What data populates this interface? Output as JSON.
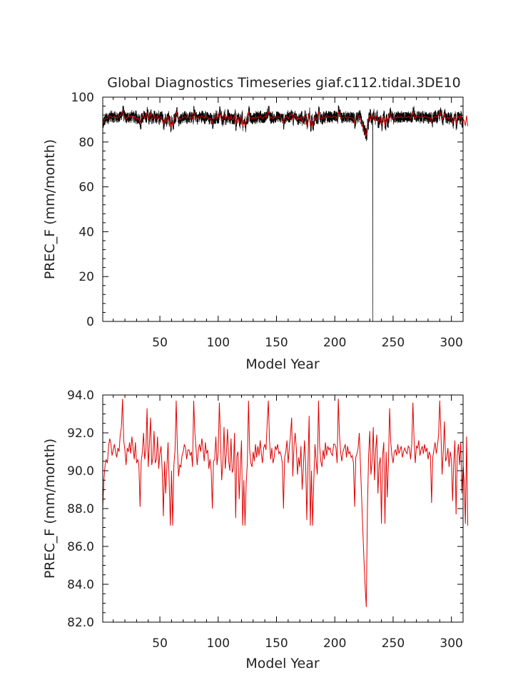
{
  "title": "Global Diagnostics Timeseries giaf.c112.tidal.3DE10",
  "chart_data": [
    {
      "type": "line",
      "title": "Global Diagnostics Timeseries giaf.c112.tidal.3DE10",
      "xlabel": "Model Year",
      "ylabel": "PREC_F (mm/month)",
      "xlim": [
        1,
        310
      ],
      "ylim": [
        0,
        100
      ],
      "xticks": [
        50,
        100,
        150,
        200,
        250,
        300
      ],
      "yticks": [
        0,
        20,
        40,
        60,
        80,
        100
      ],
      "ytick_labels": [
        "0",
        "20",
        "40",
        "60",
        "80",
        "100"
      ],
      "grid": false,
      "series": [
        {
          "color": "#000000",
          "description": "monthly values",
          "mean_level": 91,
          "noise_amplitude": 2.6,
          "x_range": [
            1,
            310
          ],
          "dropout": {
            "year": 232,
            "value": 0
          }
        },
        {
          "color": "#e00000",
          "description": "annual mean",
          "same_as": "bottom panel annual series"
        }
      ]
    },
    {
      "type": "line",
      "xlabel": "Model Year",
      "ylabel": "PREC_F (mm/month)",
      "xlim": [
        1,
        310
      ],
      "ylim": [
        82,
        94
      ],
      "xticks": [
        50,
        100,
        150,
        200,
        250,
        300
      ],
      "yticks": [
        82,
        84,
        86,
        88,
        90,
        92,
        94
      ],
      "ytick_labels": [
        "82.0",
        "84.0",
        "86.0",
        "88.0",
        "90.0",
        "92.0",
        "94.0"
      ],
      "grid": false,
      "series": [
        {
          "color": "#e00000",
          "description": "annual mean",
          "x_start": 1,
          "values": [
            88.0,
            89.5,
            90.3,
            90.6,
            90.4,
            91.3,
            91.7,
            91.4,
            90.8,
            91.1,
            91.4,
            91.0,
            90.7,
            91.2,
            91.0,
            91.9,
            92.3,
            93.8,
            91.6,
            91.1,
            90.3,
            91.2,
            91.0,
            91.5,
            90.9,
            91.8,
            91.2,
            90.6,
            91.5,
            90.4,
            90.6,
            90.3,
            88.1,
            90.5,
            91.0,
            92.0,
            90.6,
            91.1,
            93.3,
            90.2,
            91.4,
            92.8,
            90.3,
            90.7,
            92.1,
            90.4,
            90.6,
            91.8,
            90.1,
            90.9,
            91.3,
            90.0,
            87.6,
            90.5,
            88.8,
            90.2,
            91.5,
            89.3,
            87.1,
            90.0,
            87.1,
            90.3,
            91.1,
            93.7,
            91.2,
            89.7,
            90.3,
            90.2,
            90.8,
            91.0,
            91.4,
            91.2,
            90.6,
            91.1,
            91.1,
            90.8,
            91.0,
            90.2,
            93.7,
            92.0,
            91.2,
            90.3,
            91.1,
            91.4,
            91.0,
            91.7,
            91.2,
            90.5,
            91.5,
            90.9,
            91.1,
            90.1,
            90.6,
            90.0,
            88.0,
            90.5,
            90.6,
            91.8,
            90.3,
            91.0,
            93.6,
            91.7,
            89.5,
            90.4,
            92.3,
            90.1,
            90.9,
            92.2,
            90.5,
            90.0,
            91.7,
            89.9,
            90.1,
            92.0,
            87.5,
            90.8,
            91.0,
            88.5,
            90.2,
            91.6,
            87.1,
            89.5,
            87.1,
            89.3,
            90.4,
            93.7,
            91.1,
            90.4,
            90.2,
            91.0,
            90.5,
            91.4,
            90.7,
            91.3,
            90.8,
            91.6,
            90.9,
            90.4,
            91.2,
            91.4,
            91.1,
            92.5,
            93.7,
            91.6,
            90.6,
            91.2,
            90.4,
            90.7,
            91.3,
            91.1,
            91.4,
            90.9,
            91.0,
            90.8,
            90.4,
            88.0,
            90.7,
            91.0,
            91.6,
            90.4,
            91.2,
            91.9,
            92.8,
            89.7,
            91.3,
            92.0,
            91.2,
            89.8,
            90.7,
            90.2,
            91.3,
            89.0,
            90.1,
            91.6,
            90.4,
            87.4,
            90.4,
            92.9,
            87.1,
            90.0,
            87.1,
            89.5,
            91.4,
            90.5,
            89.8,
            93.7,
            91.3,
            90.5,
            90.2,
            91.1,
            90.6,
            91.5,
            90.8,
            91.3,
            91.1,
            91.2,
            90.9,
            90.8,
            91.4,
            91.4,
            91.2,
            90.4,
            93.8,
            91.9,
            91.0,
            90.5,
            91.0,
            91.2,
            91.4,
            90.7,
            91.3,
            90.9,
            91.0,
            90.7,
            90.8,
            90.4,
            88.1,
            90.7,
            90.9,
            91.2,
            92.0,
            90.3,
            88.6,
            86.9,
            85.3,
            83.9,
            82.8,
            88.0,
            90.8,
            92.1,
            89.8,
            90.5,
            92.3,
            89.5,
            91.1,
            91.9,
            88.8,
            90.3,
            90.7,
            87.2,
            90.8,
            91.5,
            87.2,
            91.0,
            88.6,
            90.4,
            93.3,
            91.5,
            90.8,
            90.4,
            91.0,
            91.1,
            90.8,
            91.4,
            90.9,
            91.1,
            91.3,
            90.7,
            91.0,
            91.2,
            91.0,
            90.9,
            91.3,
            91.2,
            90.6,
            91.4,
            93.6,
            91.6,
            90.4,
            91.3,
            91.2,
            91.6,
            90.8,
            91.1,
            91.3,
            90.9,
            91.4,
            91.0,
            91.2,
            90.6,
            91.0,
            90.8,
            88.3,
            90.7,
            91.1,
            91.5,
            90.9,
            91.3,
            91.9,
            93.7,
            92.0,
            89.8,
            91.0,
            92.6,
            90.5,
            90.7,
            91.2,
            90.2,
            91.0,
            90.6,
            88.4,
            90.4,
            91.6,
            87.7,
            90.8,
            91.4,
            90.3,
            91.5,
            88.8,
            90.3,
            89.4,
            87.2,
            91.8,
            87.1
          ]
        }
      ]
    }
  ]
}
